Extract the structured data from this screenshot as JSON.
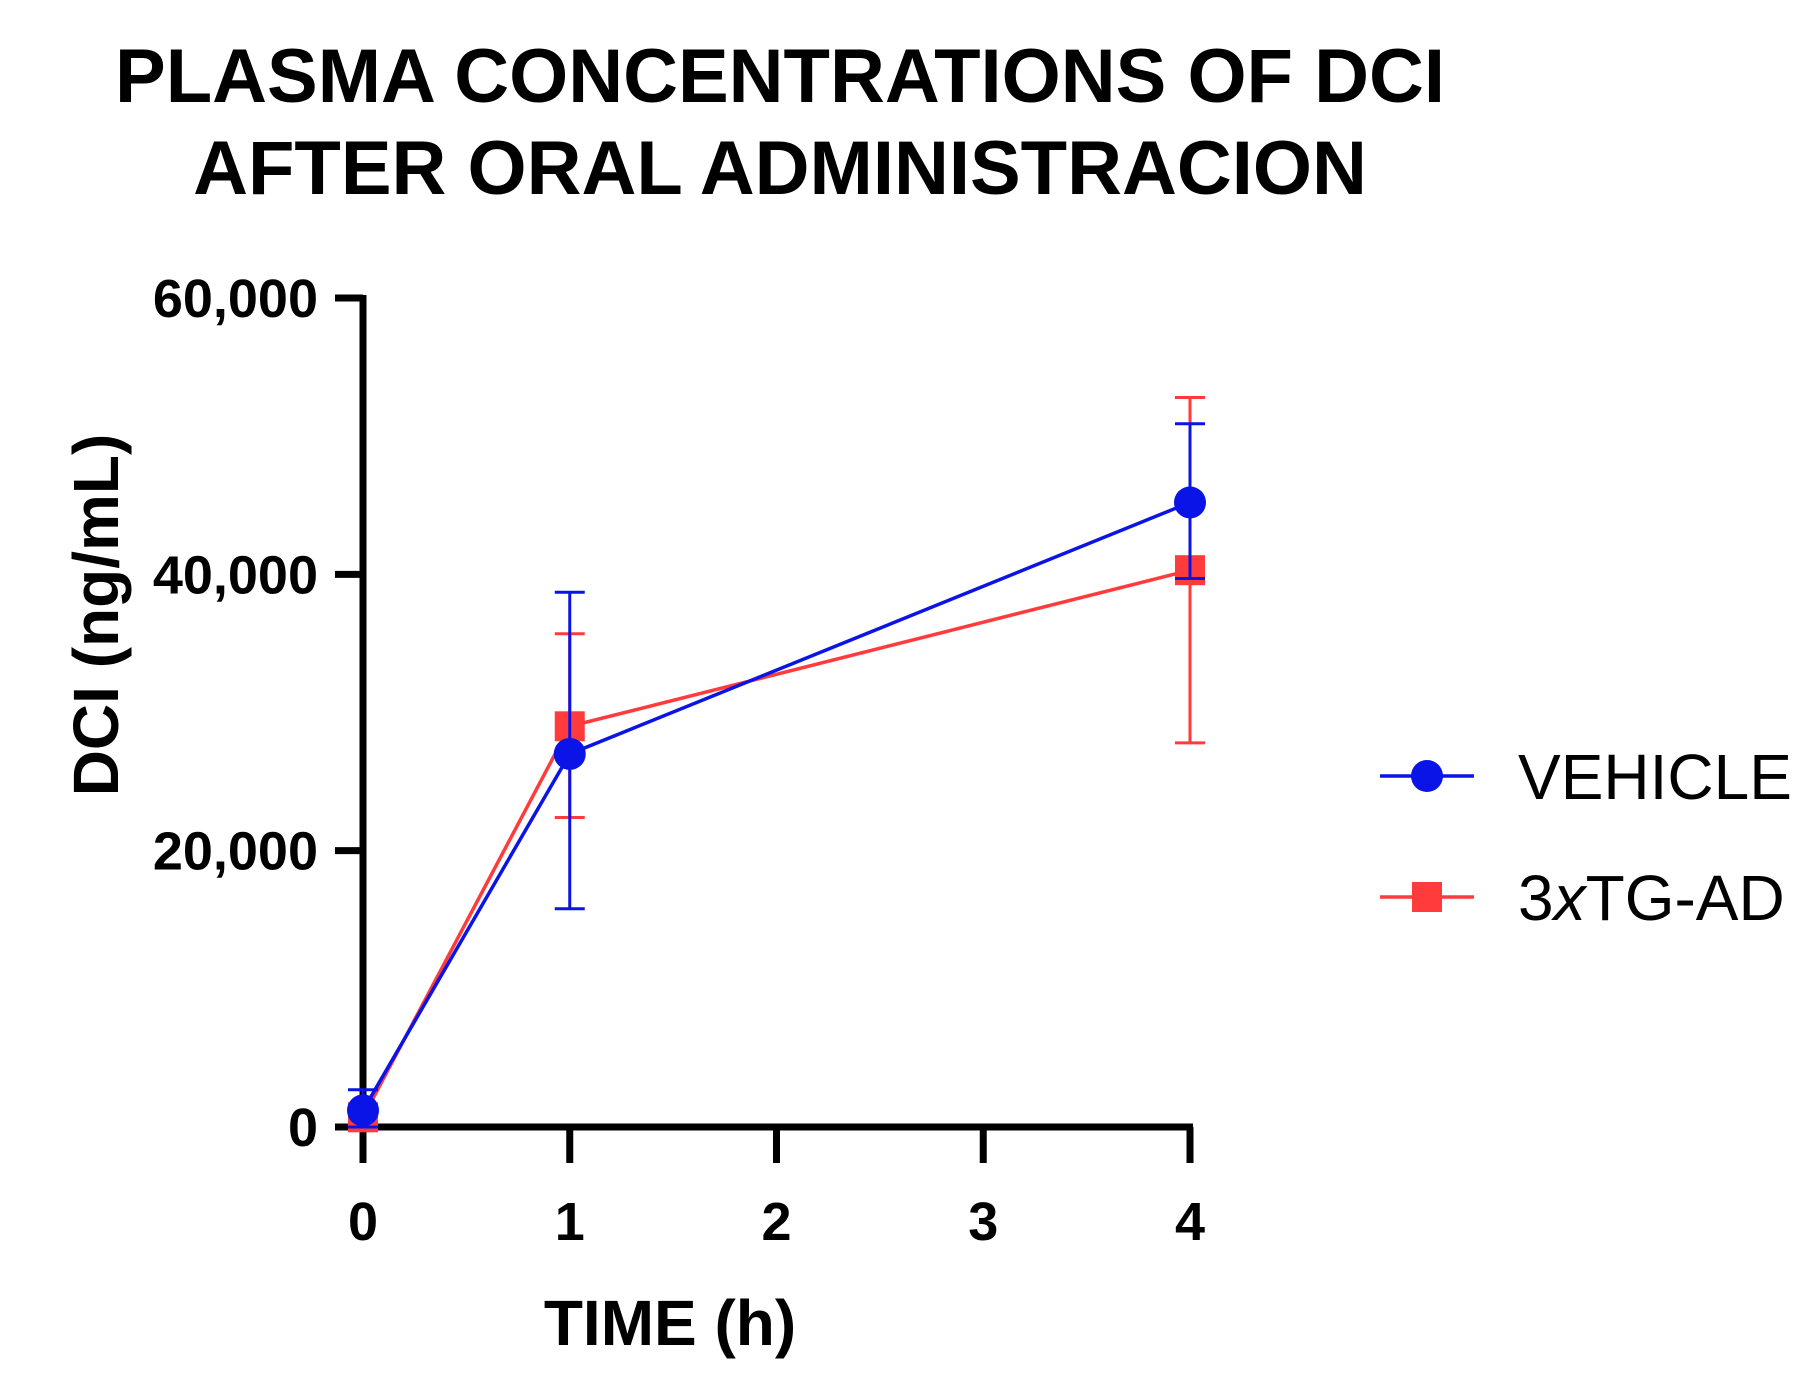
{
  "chart_data": {
    "type": "line",
    "title_lines": [
      "PLASMA CONCENTRATIONS OF DCI",
      "AFTER ORAL ADMINISTRACION"
    ],
    "xlabel": "TIME (h)",
    "ylabel": "DCI (ng/mL)",
    "xlim": [
      0,
      4
    ],
    "ylim": [
      0,
      60000
    ],
    "x_ticks": [
      0,
      1,
      2,
      3,
      4
    ],
    "x_tick_labels": [
      "0",
      "1",
      "2",
      "3",
      "4"
    ],
    "y_ticks": [
      0,
      20000,
      40000,
      60000
    ],
    "y_tick_labels": [
      "0",
      "20,000",
      "40,000",
      "60,000"
    ],
    "grid": false,
    "legend_position": "right",
    "series": [
      {
        "name": "VEHICLE",
        "name_parts": [
          "VEHICLE"
        ],
        "color": "#0a14e6",
        "marker": "circle",
        "x": [
          0,
          1,
          4
        ],
        "values": [
          1200,
          27000,
          45200
        ],
        "err_upper": [
          2700,
          38700,
          50900
        ],
        "err_lower": [
          0,
          15800,
          39700
        ]
      },
      {
        "name": "3xTG-AD",
        "name_parts": [
          "3",
          "x",
          "TG-AD"
        ],
        "color": "#ff3b3b",
        "marker": "square",
        "x": [
          0,
          1,
          4
        ],
        "values": [
          700,
          29000,
          40300
        ],
        "err_upper": [
          1500,
          35700,
          52800
        ],
        "err_lower": [
          0,
          22400,
          27800
        ]
      }
    ]
  }
}
